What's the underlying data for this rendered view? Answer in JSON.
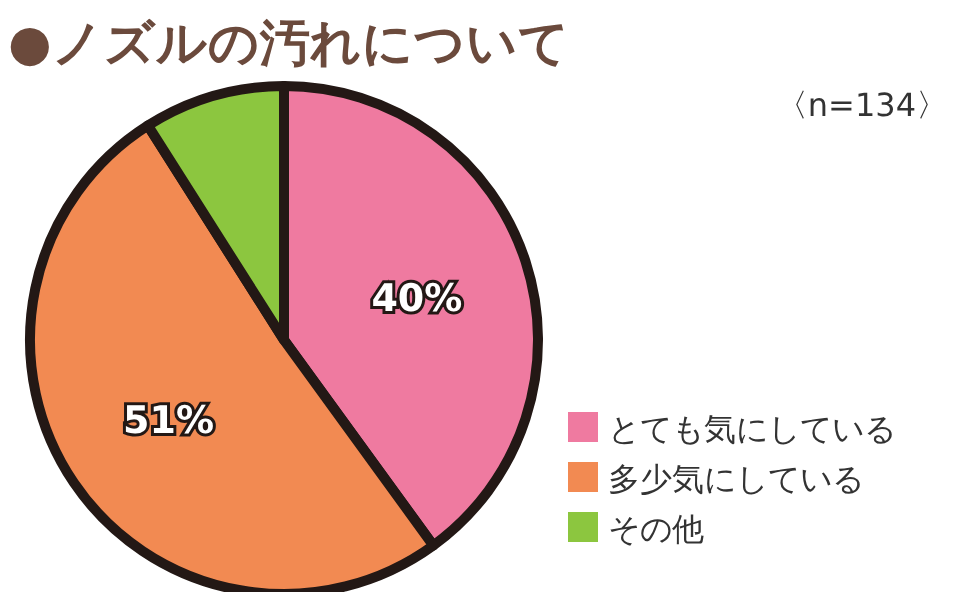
{
  "chart_data": {
    "type": "pie",
    "title": "●ノズルの汚れについて",
    "subtitle": "〈n=134〉",
    "categories": [
      "とても気にしている",
      "多少気にしている",
      "その他"
    ],
    "values": [
      40,
      51,
      9
    ],
    "colors": [
      "#ef7aa0",
      "#f28a52",
      "#8cc63f"
    ],
    "value_labels": [
      "40%",
      "51%",
      null
    ],
    "legend": "bottom right"
  }
}
